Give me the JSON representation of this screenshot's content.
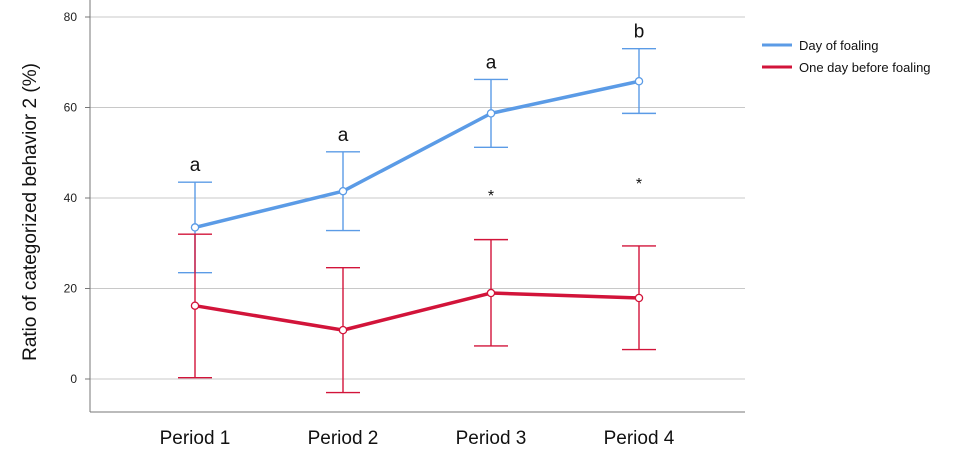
{
  "chart_data": {
    "type": "line",
    "title": "",
    "xlabel": "",
    "ylabel": "Ratio of categorized behavior 2 (%)",
    "categories": [
      "Period 1",
      "Period 2",
      "Period 3",
      "Period 4"
    ],
    "ylim": [
      -7,
      82
    ],
    "yticks": [
      "0",
      "20",
      "40",
      "60",
      "80"
    ],
    "grid": "horizontal",
    "legend_position": "top-right",
    "series": [
      {
        "name": "Day of foaling",
        "color": "#5b9be6",
        "values": [
          33.5,
          41.5,
          58.7,
          65.8
        ],
        "error_low": [
          23.5,
          32.8,
          51.2,
          58.7
        ],
        "error_high": [
          43.5,
          50.2,
          66.2,
          73.0
        ],
        "annotations": [
          "a",
          "a",
          "a",
          "b"
        ]
      },
      {
        "name": "One day before foaling",
        "color": "#d2143a",
        "values": [
          16.2,
          10.8,
          19.0,
          17.9
        ],
        "error_low": [
          0.3,
          -3.0,
          7.3,
          6.5
        ],
        "error_high": [
          32.0,
          24.6,
          30.8,
          29.4
        ],
        "annotations": [
          "",
          "",
          "*",
          "*"
        ]
      }
    ]
  }
}
